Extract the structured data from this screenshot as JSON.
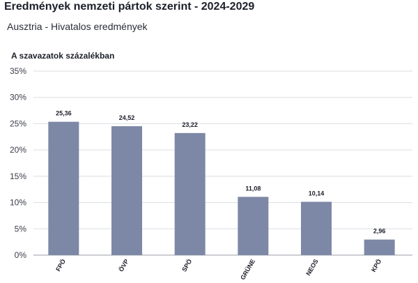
{
  "header": {
    "title": "Eredmények nemzeti pártok szerint - 2024-2029",
    "subtitle": "Ausztria - Hivatalos eredmények"
  },
  "chart_data": {
    "type": "bar",
    "title": "Eredmények nemzeti pártok szerint - 2024-2029",
    "subtitle": "Ausztria - Hivatalos eredmények",
    "ylabel": "A szavazatok százalékban",
    "xlabel": "",
    "categories": [
      "FPÖ",
      "ÖVP",
      "SPÖ",
      "GRÜNE",
      "NEOS",
      "KPÖ"
    ],
    "values": [
      25.36,
      24.52,
      23.22,
      11.08,
      10.14,
      2.96
    ],
    "value_labels": [
      "25,36",
      "24,52",
      "23,22",
      "11,08",
      "10,14",
      "2,96"
    ],
    "ylim": [
      0,
      35
    ],
    "yticks": [
      "0%",
      "5%",
      "10%",
      "15%",
      "20%",
      "25%",
      "30%",
      "35%"
    ],
    "grid": true,
    "bar_color": "#7d88a6",
    "grid_color": "#dcdde3"
  }
}
